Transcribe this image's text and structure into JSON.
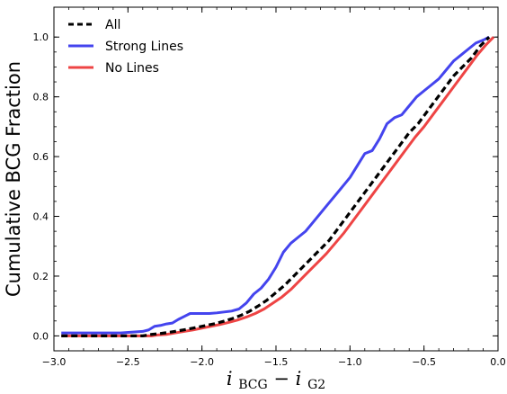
{
  "chart_data": {
    "type": "line",
    "xlabel": {
      "main": "i",
      "sub1": "BCG",
      "mid": " − ",
      "main2": "i",
      "sub2": "G2"
    },
    "ylabel": "Cumulative BCG Fraction",
    "xlim": [
      -3.0,
      0.0
    ],
    "ylim": [
      -0.05,
      1.1
    ],
    "xticks": [
      -3.0,
      -2.5,
      -2.0,
      -1.5,
      -1.0,
      -0.5,
      0.0
    ],
    "xtick_labels": [
      "−3.0",
      "−2.5",
      "−2.0",
      "−1.5",
      "−1.0",
      "−0.5",
      "0.0"
    ],
    "yticks": [
      0.0,
      0.2,
      0.4,
      0.6,
      0.8,
      1.0
    ],
    "ytick_labels": [
      "0.0",
      "0.2",
      "0.4",
      "0.6",
      "0.8",
      "1.0"
    ],
    "grid": false,
    "legend_position": "top-left",
    "series": [
      {
        "name": "All",
        "color": "#000000",
        "style": "dashed",
        "x": [
          -2.95,
          -2.4,
          -2.34,
          -2.28,
          -2.22,
          -2.16,
          -2.1,
          -2.04,
          -1.98,
          -1.92,
          -1.86,
          -1.8,
          -1.74,
          -1.68,
          -1.62,
          -1.56,
          -1.5,
          -1.44,
          -1.38,
          -1.32,
          -1.26,
          -1.2,
          -1.14,
          -1.08,
          -1.02,
          -0.96,
          -0.9,
          -0.84,
          -0.78,
          -0.72,
          -0.66,
          -0.6,
          -0.54,
          -0.48,
          -0.42,
          -0.36,
          -0.3,
          -0.24,
          -0.18,
          -0.12,
          -0.06
        ],
        "y": [
          0.0,
          0.0,
          0.005,
          0.008,
          0.012,
          0.017,
          0.022,
          0.028,
          0.034,
          0.04,
          0.048,
          0.057,
          0.068,
          0.082,
          0.1,
          0.12,
          0.145,
          0.17,
          0.2,
          0.23,
          0.26,
          0.29,
          0.32,
          0.36,
          0.4,
          0.44,
          0.48,
          0.52,
          0.56,
          0.6,
          0.64,
          0.68,
          0.71,
          0.75,
          0.79,
          0.83,
          0.87,
          0.9,
          0.93,
          0.97,
          1.0
        ]
      },
      {
        "name": "Strong Lines",
        "color": "#4444ee",
        "style": "solid",
        "x": [
          -2.95,
          -2.55,
          -2.4,
          -2.36,
          -2.32,
          -2.28,
          -2.24,
          -2.2,
          -2.16,
          -2.12,
          -2.08,
          -2.04,
          -2.0,
          -1.95,
          -1.9,
          -1.85,
          -1.8,
          -1.75,
          -1.7,
          -1.65,
          -1.6,
          -1.55,
          -1.5,
          -1.45,
          -1.4,
          -1.35,
          -1.3,
          -1.25,
          -1.2,
          -1.15,
          -1.1,
          -1.05,
          -1.0,
          -0.95,
          -0.9,
          -0.85,
          -0.8,
          -0.75,
          -0.7,
          -0.65,
          -0.6,
          -0.55,
          -0.5,
          -0.45,
          -0.4,
          -0.35,
          -0.3,
          -0.25,
          -0.2,
          -0.15,
          -0.1,
          -0.06
        ],
        "y": [
          0.01,
          0.01,
          0.015,
          0.02,
          0.032,
          0.035,
          0.04,
          0.043,
          0.055,
          0.065,
          0.075,
          0.075,
          0.075,
          0.075,
          0.077,
          0.08,
          0.083,
          0.09,
          0.11,
          0.14,
          0.16,
          0.19,
          0.23,
          0.28,
          0.31,
          0.33,
          0.35,
          0.38,
          0.41,
          0.44,
          0.47,
          0.5,
          0.53,
          0.57,
          0.61,
          0.62,
          0.66,
          0.71,
          0.73,
          0.74,
          0.77,
          0.8,
          0.82,
          0.84,
          0.86,
          0.89,
          0.92,
          0.94,
          0.96,
          0.98,
          0.99,
          1.0
        ]
      },
      {
        "name": "No Lines",
        "color": "#ee4444",
        "style": "solid",
        "x": [
          -2.95,
          -2.34,
          -2.3,
          -2.24,
          -2.18,
          -2.12,
          -2.06,
          -2.0,
          -1.94,
          -1.88,
          -1.82,
          -1.76,
          -1.7,
          -1.64,
          -1.58,
          -1.52,
          -1.46,
          -1.4,
          -1.34,
          -1.28,
          -1.22,
          -1.16,
          -1.1,
          -1.04,
          -0.98,
          -0.92,
          -0.86,
          -0.8,
          -0.74,
          -0.68,
          -0.62,
          -0.56,
          -0.5,
          -0.44,
          -0.38,
          -0.32,
          -0.26,
          -0.2,
          -0.14,
          -0.08,
          -0.03
        ],
        "y": [
          0.0,
          0.0,
          0.003,
          0.005,
          0.01,
          0.015,
          0.02,
          0.026,
          0.032,
          0.038,
          0.045,
          0.053,
          0.063,
          0.075,
          0.09,
          0.11,
          0.13,
          0.155,
          0.185,
          0.215,
          0.245,
          0.275,
          0.31,
          0.345,
          0.385,
          0.425,
          0.465,
          0.505,
          0.545,
          0.585,
          0.625,
          0.665,
          0.7,
          0.74,
          0.78,
          0.82,
          0.86,
          0.9,
          0.94,
          0.975,
          1.0
        ]
      }
    ]
  }
}
